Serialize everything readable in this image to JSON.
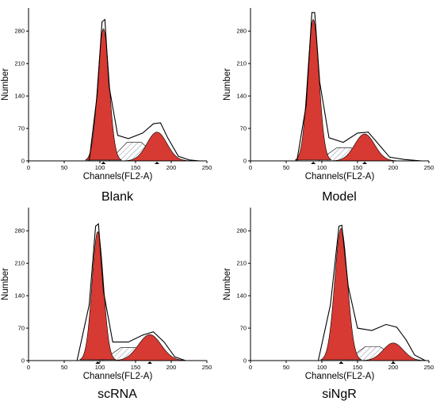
{
  "colors": {
    "peak_fill": "#d63a32",
    "s_phase_hatch": "#8a8fa3",
    "outline": "#000000"
  },
  "chart_data": [
    {
      "type": "area",
      "title": "Blank",
      "xlabel": "Channels(FL2-A)",
      "ylabel": "Number",
      "xlim": [
        0,
        250
      ],
      "ylim": [
        0,
        330
      ],
      "xticks": [
        0,
        50,
        100,
        150,
        200,
        250
      ],
      "yticks": [
        0,
        70,
        140,
        210,
        280
      ],
      "g1_peak": {
        "mean": 105,
        "sd": 8,
        "height": 285
      },
      "g2_peak": {
        "mean": 180,
        "sd": 14,
        "height": 62
      },
      "s_phase": {
        "start": 113,
        "end": 188,
        "max_level": 40
      },
      "observed_peaks": [
        {
          "x": 85,
          "y": 0
        },
        {
          "x": 96,
          "y": 140
        },
        {
          "x": 103,
          "y": 300
        },
        {
          "x": 107,
          "y": 305
        },
        {
          "x": 113,
          "y": 160
        },
        {
          "x": 125,
          "y": 55
        },
        {
          "x": 140,
          "y": 48
        },
        {
          "x": 160,
          "y": 60
        },
        {
          "x": 175,
          "y": 80
        },
        {
          "x": 185,
          "y": 82
        },
        {
          "x": 195,
          "y": 50
        },
        {
          "x": 210,
          "y": 10
        },
        {
          "x": 225,
          "y": 2
        },
        {
          "x": 240,
          "y": 0
        }
      ]
    },
    {
      "type": "area",
      "title": "Model",
      "xlabel": "Channels(FL2-A)",
      "ylabel": "Number",
      "xlim": [
        0,
        250
      ],
      "ylim": [
        0,
        330
      ],
      "xticks": [
        0,
        50,
        100,
        150,
        200,
        250
      ],
      "yticks": [
        0,
        70,
        140,
        210,
        280
      ],
      "g1_peak": {
        "mean": 88,
        "sd": 8,
        "height": 305
      },
      "g2_peak": {
        "mean": 160,
        "sd": 14,
        "height": 58
      },
      "s_phase": {
        "start": 95,
        "end": 172,
        "max_level": 28
      },
      "observed_peaks": [
        {
          "x": 65,
          "y": 0
        },
        {
          "x": 78,
          "y": 120
        },
        {
          "x": 86,
          "y": 320
        },
        {
          "x": 90,
          "y": 320
        },
        {
          "x": 97,
          "y": 170
        },
        {
          "x": 110,
          "y": 50
        },
        {
          "x": 130,
          "y": 40
        },
        {
          "x": 150,
          "y": 60
        },
        {
          "x": 165,
          "y": 62
        },
        {
          "x": 180,
          "y": 35
        },
        {
          "x": 195,
          "y": 8
        },
        {
          "x": 215,
          "y": 3
        },
        {
          "x": 240,
          "y": 0
        }
      ]
    },
    {
      "type": "area",
      "title": "scRNA",
      "xlabel": "Channels(FL2-A)",
      "ylabel": "Number",
      "xlim": [
        0,
        250
      ],
      "ylim": [
        0,
        330
      ],
      "xticks": [
        0,
        50,
        100,
        150,
        200,
        250
      ],
      "yticks": [
        0,
        70,
        140,
        210,
        280
      ],
      "g1_peak": {
        "mean": 97,
        "sd": 8,
        "height": 278
      },
      "g2_peak": {
        "mean": 170,
        "sd": 16,
        "height": 56
      },
      "s_phase": {
        "start": 103,
        "end": 182,
        "max_level": 28
      },
      "observed_peaks": [
        {
          "x": 68,
          "y": 0
        },
        {
          "x": 85,
          "y": 120
        },
        {
          "x": 94,
          "y": 290
        },
        {
          "x": 98,
          "y": 295
        },
        {
          "x": 105,
          "y": 150
        },
        {
          "x": 118,
          "y": 40
        },
        {
          "x": 140,
          "y": 40
        },
        {
          "x": 160,
          "y": 55
        },
        {
          "x": 175,
          "y": 62
        },
        {
          "x": 190,
          "y": 40
        },
        {
          "x": 205,
          "y": 8
        },
        {
          "x": 220,
          "y": 0
        }
      ]
    },
    {
      "type": "area",
      "title": "siNgR",
      "xlabel": "Channels(FL2-A)",
      "ylabel": "Number",
      "xlim": [
        0,
        250
      ],
      "ylim": [
        0,
        330
      ],
      "xticks": [
        0,
        50,
        100,
        150,
        200,
        250
      ],
      "yticks": [
        0,
        70,
        140,
        210,
        280
      ],
      "g1_peak": {
        "mean": 127,
        "sd": 9,
        "height": 285
      },
      "g2_peak": {
        "mean": 200,
        "sd": 14,
        "height": 38
      },
      "s_phase": {
        "start": 135,
        "end": 212,
        "max_level": 30
      },
      "observed_peaks": [
        {
          "x": 95,
          "y": 0
        },
        {
          "x": 112,
          "y": 120
        },
        {
          "x": 124,
          "y": 290
        },
        {
          "x": 128,
          "y": 292
        },
        {
          "x": 137,
          "y": 160
        },
        {
          "x": 150,
          "y": 70
        },
        {
          "x": 170,
          "y": 65
        },
        {
          "x": 190,
          "y": 78
        },
        {
          "x": 205,
          "y": 72
        },
        {
          "x": 218,
          "y": 45
        },
        {
          "x": 230,
          "y": 12
        },
        {
          "x": 245,
          "y": 0
        }
      ]
    }
  ]
}
